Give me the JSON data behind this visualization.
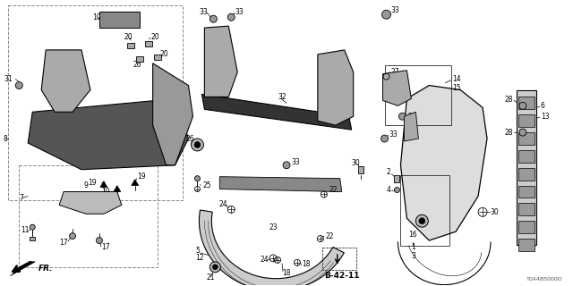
{
  "fig_width": 6.4,
  "fig_height": 3.2,
  "dpi": 100,
  "bg": "#ffffff",
  "diagram_code": "T0A4B5000D",
  "ref_code": "B-42-11",
  "fr_label": "FR.",
  "fs": 5.5,
  "fs2": 6.5,
  "lw": 0.7,
  "lw2": 1.0,
  "gray1": "#cccccc",
  "gray2": "#888888",
  "dark": "#333333"
}
